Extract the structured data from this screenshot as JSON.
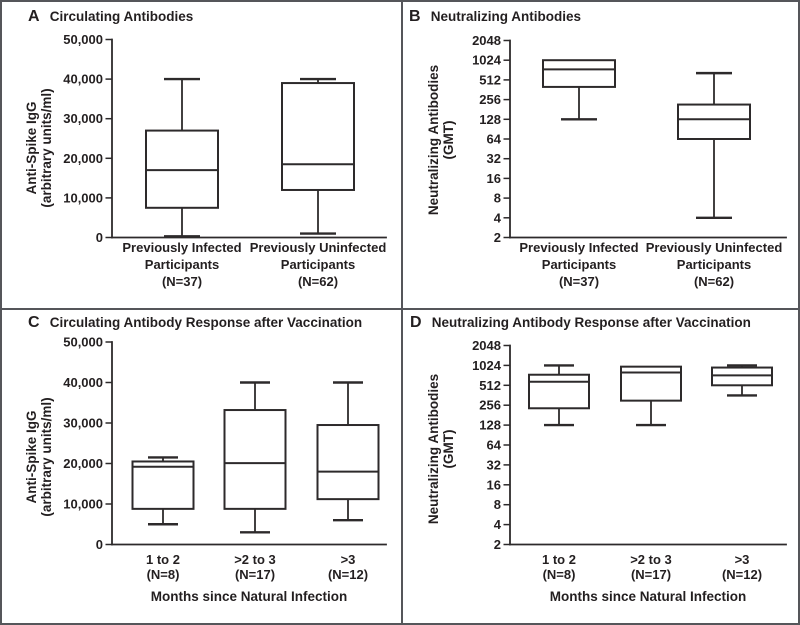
{
  "figure": {
    "background": "#ffffff",
    "border_color": "#55565a",
    "line_color": "#2d2a2b",
    "text_color": "#231f20"
  },
  "chart_data": [
    {
      "type": "box",
      "panel": "A",
      "title": "Circulating Antibodies",
      "ylabel": [
        "Anti-Spike IgG",
        "(arbitrary units/ml)"
      ],
      "yscale": "linear",
      "ylim": [
        0,
        50000
      ],
      "yticks": [
        0,
        10000,
        20000,
        30000,
        40000,
        50000
      ],
      "ytick_labels": [
        "0",
        "10,000",
        "20,000",
        "30,000",
        "40,000",
        "50,000"
      ],
      "grid": false,
      "categories": [
        {
          "lines": [
            "Previously Infected",
            "Participants",
            "(N=37)"
          ],
          "n": 37
        },
        {
          "lines": [
            "Previously Uninfected",
            "Participants",
            "(N=62)"
          ],
          "n": 62
        }
      ],
      "boxes": [
        {
          "whisker_low": 300,
          "q1": 7500,
          "median": 17000,
          "q3": 27000,
          "whisker_high": 40000
        },
        {
          "whisker_low": 1000,
          "q1": 12000,
          "median": 18500,
          "q3": 39000,
          "whisker_high": 40000
        }
      ]
    },
    {
      "type": "box",
      "panel": "B",
      "title": "Neutralizing Antibodies",
      "ylabel": [
        "Neutralizing Antibodies",
        "(GMT)"
      ],
      "yscale": "log2",
      "ylim": [
        2,
        2048
      ],
      "yticks": [
        2,
        4,
        8,
        16,
        32,
        64,
        128,
        256,
        512,
        1024,
        2048
      ],
      "ytick_labels": [
        "2",
        "4",
        "8",
        "16",
        "32",
        "64",
        "128",
        "256",
        "512",
        "1024",
        "2048"
      ],
      "grid": false,
      "categories": [
        {
          "lines": [
            "Previously Infected",
            "Participants",
            "(N=37)"
          ],
          "n": 37
        },
        {
          "lines": [
            "Previously Uninfected",
            "Participants",
            "(N=62)"
          ],
          "n": 62
        }
      ],
      "boxes": [
        {
          "whisker_low": 128,
          "q1": 400,
          "median": 740,
          "q3": 1024,
          "whisker_high": 1024
        },
        {
          "whisker_low": 4,
          "q1": 64,
          "median": 128,
          "q3": 215,
          "whisker_high": 650
        }
      ]
    },
    {
      "type": "box",
      "panel": "C",
      "title": "Circulating Antibody Response after Vaccination",
      "ylabel": [
        "Anti-Spike IgG",
        "(arbitrary units/ml)"
      ],
      "xlabel": "Months since Natural Infection",
      "yscale": "linear",
      "ylim": [
        0,
        50000
      ],
      "yticks": [
        0,
        10000,
        20000,
        30000,
        40000,
        50000
      ],
      "ytick_labels": [
        "0",
        "10,000",
        "20,000",
        "30,000",
        "40,000",
        "50,000"
      ],
      "grid": false,
      "categories": [
        {
          "lines": [
            "1 to 2",
            "(N=8)"
          ],
          "n": 8
        },
        {
          "lines": [
            ">2 to 3",
            "(N=17)"
          ],
          "n": 17
        },
        {
          "lines": [
            ">3",
            "(N=12)"
          ],
          "n": 12
        }
      ],
      "boxes": [
        {
          "whisker_low": 5000,
          "q1": 8800,
          "median": 19200,
          "q3": 20500,
          "whisker_high": 21500
        },
        {
          "whisker_low": 3000,
          "q1": 8800,
          "median": 20100,
          "q3": 33200,
          "whisker_high": 40000
        },
        {
          "whisker_low": 6000,
          "q1": 11200,
          "median": 18000,
          "q3": 29500,
          "whisker_high": 40000
        }
      ]
    },
    {
      "type": "box",
      "panel": "D",
      "title": "Neutralizing Antibody Response after Vaccination",
      "ylabel": [
        "Neutralizing Antibodies",
        "(GMT)"
      ],
      "xlabel": "Months since Natural Infection",
      "yscale": "log2",
      "ylim": [
        2,
        2048
      ],
      "yticks": [
        2,
        4,
        8,
        16,
        32,
        64,
        128,
        256,
        512,
        1024,
        2048
      ],
      "ytick_labels": [
        "2",
        "4",
        "8",
        "16",
        "32",
        "64",
        "128",
        "256",
        "512",
        "1024",
        "2048"
      ],
      "grid": false,
      "categories": [
        {
          "lines": [
            "1 to 2",
            "(N=8)"
          ],
          "n": 8
        },
        {
          "lines": [
            ">2 to 3",
            "(N=17)"
          ],
          "n": 17
        },
        {
          "lines": [
            ">3",
            "(N=12)"
          ],
          "n": 12
        }
      ],
      "boxes": [
        {
          "whisker_low": 128,
          "q1": 230,
          "median": 580,
          "q3": 740,
          "whisker_high": 1024
        },
        {
          "whisker_low": 128,
          "q1": 300,
          "median": 800,
          "q3": 980,
          "whisker_high": 980
        },
        {
          "whisker_low": 360,
          "q1": 512,
          "median": 725,
          "q3": 950,
          "whisker_high": 1024
        }
      ]
    }
  ]
}
